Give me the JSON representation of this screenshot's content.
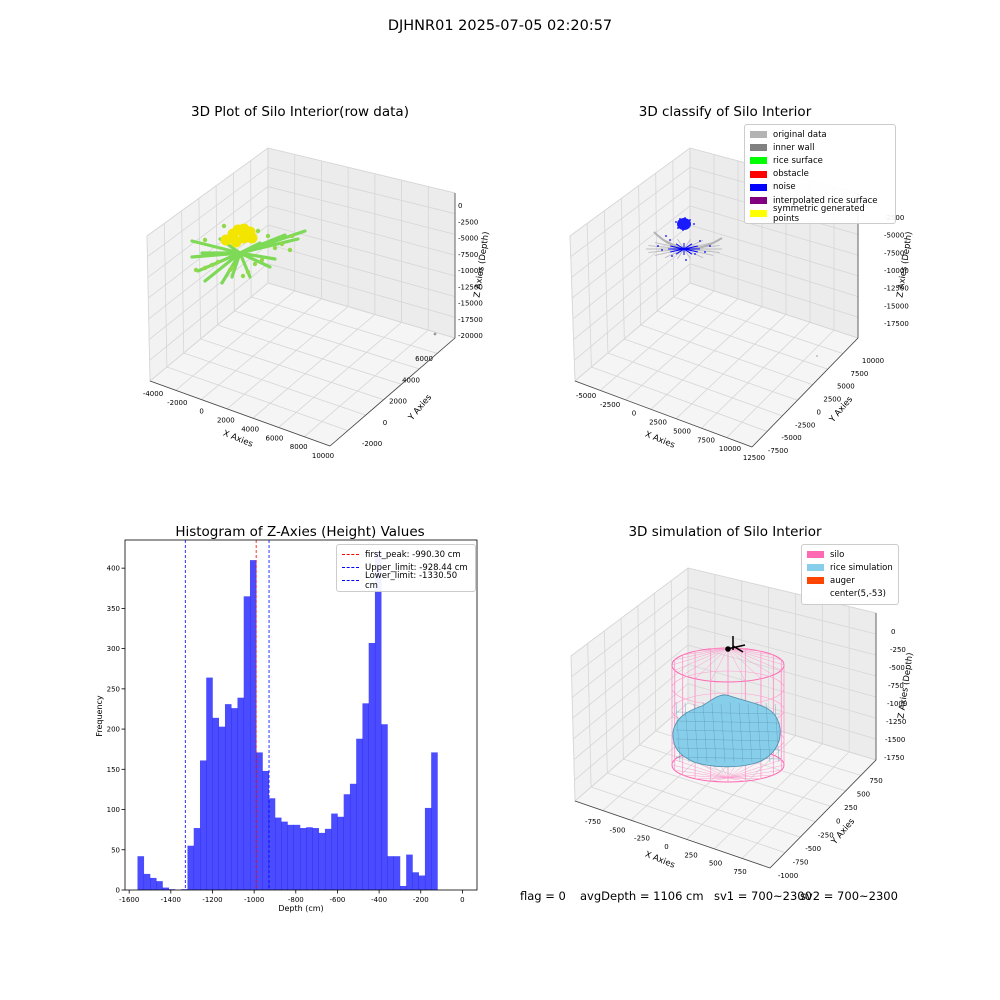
{
  "suptitle": "DJHNR01 2025-07-05 02:20:57",
  "panels": {
    "p1": {
      "title": "3D Plot of Silo Interior(row data)",
      "xlabel": "X Axies",
      "ylabel": "Y Axies",
      "zlabel": "Z Axies (Depth)",
      "xticks": [
        "-4000",
        "-2000",
        "0",
        "2000",
        "4000",
        "6000",
        "8000",
        "10000"
      ],
      "yticks": [
        "-2000",
        "0",
        "2000",
        "4000",
        "6000"
      ],
      "zticks": [
        "0",
        "-2500",
        "-5000",
        "-7500",
        "-10000",
        "-12500",
        "-15000",
        "-17500",
        "-20000"
      ]
    },
    "p2": {
      "title": "3D classify of Silo Interior",
      "xlabel": "X Axies",
      "ylabel": "Y Axies",
      "zlabel": "Z Axies (Depth)",
      "xticks": [
        "-5000",
        "-2500",
        "0",
        "2500",
        "5000",
        "7500",
        "10000",
        "12500"
      ],
      "yticks": [
        "-7500",
        "-5000",
        "-2500",
        "0",
        "2500",
        "5000",
        "7500",
        "10000"
      ],
      "zticks": [
        "-2500",
        "-5000",
        "-7500",
        "-10000",
        "-12500",
        "-15000",
        "-17500"
      ],
      "legend": [
        {
          "label": "original data",
          "color": "#b3b3b3"
        },
        {
          "label": "inner wall",
          "color": "#808080"
        },
        {
          "label": "rice surface",
          "color": "#00ff00"
        },
        {
          "label": "obstacle",
          "color": "#ff0000"
        },
        {
          "label": "noise",
          "color": "#0000ff"
        },
        {
          "label": "interpolated rice surface",
          "color": "#800080"
        },
        {
          "label": "symmetric generated points",
          "color": "#ffff00"
        }
      ]
    },
    "p4": {
      "title": "3D simulation of Silo Interior",
      "xlabel": "X Axies",
      "ylabel": "Y Axies",
      "zlabel": "Z Axies (Depth)",
      "xticks": [
        "-750",
        "-500",
        "-250",
        "0",
        "250",
        "500",
        "750"
      ],
      "yticks": [
        "-1000",
        "-750",
        "-500",
        "-250",
        "0",
        "250",
        "500",
        "750"
      ],
      "zticks": [
        "0",
        "-250",
        "-500",
        "-750",
        "-1000",
        "-1250",
        "-1500",
        "-1750"
      ],
      "legend": [
        {
          "label": "silo",
          "color": "#ff69b4"
        },
        {
          "label": "rice simulation",
          "color": "#87ceeb"
        },
        {
          "label": "auger",
          "color": "#ff4500"
        },
        {
          "label": "center(5,-53)",
          "color": "#ffffff"
        }
      ]
    }
  },
  "chart_data": [
    {
      "type": "bar",
      "title": "Histogram of Z-Axies (Height) Values",
      "xlabel": "Depth (cm)",
      "ylabel": "Frequency",
      "bar_color": "#0000ff",
      "xlim": [
        -1620,
        70
      ],
      "ylim": [
        0,
        435
      ],
      "xticks": [
        -1600,
        -1400,
        -1200,
        -1000,
        -800,
        -600,
        -400,
        -200,
        0
      ],
      "yticks": [
        0,
        50,
        100,
        150,
        200,
        250,
        300,
        350,
        400
      ],
      "bins": [
        {
          "x0": -1560,
          "x1": -1530,
          "count": 42
        },
        {
          "x0": -1530,
          "x1": -1500,
          "count": 20
        },
        {
          "x0": -1500,
          "x1": -1470,
          "count": 15
        },
        {
          "x0": -1470,
          "x1": -1440,
          "count": 11
        },
        {
          "x0": -1440,
          "x1": -1410,
          "count": 3
        },
        {
          "x0": -1410,
          "x1": -1380,
          "count": 1
        },
        {
          "x0": -1380,
          "x1": -1350,
          "count": 0
        },
        {
          "x0": -1350,
          "x1": -1320,
          "count": 1
        },
        {
          "x0": -1320,
          "x1": -1290,
          "count": 55
        },
        {
          "x0": -1290,
          "x1": -1260,
          "count": 77
        },
        {
          "x0": -1260,
          "x1": -1230,
          "count": 161
        },
        {
          "x0": -1230,
          "x1": -1200,
          "count": 264
        },
        {
          "x0": -1200,
          "x1": -1170,
          "count": 214
        },
        {
          "x0": -1170,
          "x1": -1140,
          "count": 203
        },
        {
          "x0": -1140,
          "x1": -1110,
          "count": 231
        },
        {
          "x0": -1110,
          "x1": -1080,
          "count": 226
        },
        {
          "x0": -1080,
          "x1": -1050,
          "count": 239
        },
        {
          "x0": -1050,
          "x1": -1020,
          "count": 365
        },
        {
          "x0": -1020,
          "x1": -990,
          "count": 410
        },
        {
          "x0": -990,
          "x1": -960,
          "count": 171
        },
        {
          "x0": -960,
          "x1": -930,
          "count": 148
        },
        {
          "x0": -930,
          "x1": -900,
          "count": 114
        },
        {
          "x0": -900,
          "x1": -870,
          "count": 90
        },
        {
          "x0": -870,
          "x1": -840,
          "count": 85
        },
        {
          "x0": -840,
          "x1": -810,
          "count": 81
        },
        {
          "x0": -810,
          "x1": -780,
          "count": 81
        },
        {
          "x0": -780,
          "x1": -750,
          "count": 77
        },
        {
          "x0": -750,
          "x1": -720,
          "count": 78
        },
        {
          "x0": -720,
          "x1": -690,
          "count": 77
        },
        {
          "x0": -690,
          "x1": -660,
          "count": 71
        },
        {
          "x0": -660,
          "x1": -630,
          "count": 76
        },
        {
          "x0": -630,
          "x1": -600,
          "count": 95
        },
        {
          "x0": -600,
          "x1": -570,
          "count": 91
        },
        {
          "x0": -570,
          "x1": -540,
          "count": 119
        },
        {
          "x0": -540,
          "x1": -510,
          "count": 132
        },
        {
          "x0": -510,
          "x1": -480,
          "count": 188
        },
        {
          "x0": -480,
          "x1": -450,
          "count": 232
        },
        {
          "x0": -450,
          "x1": -420,
          "count": 307
        },
        {
          "x0": -420,
          "x1": -390,
          "count": 420
        },
        {
          "x0": -390,
          "x1": -360,
          "count": 206
        },
        {
          "x0": -360,
          "x1": -330,
          "count": 42
        },
        {
          "x0": -330,
          "x1": -300,
          "count": 42
        },
        {
          "x0": -300,
          "x1": -270,
          "count": 5
        },
        {
          "x0": -270,
          "x1": -240,
          "count": 44
        },
        {
          "x0": -240,
          "x1": -210,
          "count": 22
        },
        {
          "x0": -210,
          "x1": -180,
          "count": 18
        },
        {
          "x0": -180,
          "x1": -150,
          "count": 102
        },
        {
          "x0": -150,
          "x1": -120,
          "count": 171
        }
      ],
      "vlines": [
        {
          "label": "first_peak: -990.30 cm",
          "x": -990.3,
          "color": "#ff0000"
        },
        {
          "label": "Upper_limit: -928.44 cm",
          "x": -928.44,
          "color": "#0000ff"
        },
        {
          "label": "Lower_limit: -1330.50 cm",
          "x": -1330.5,
          "color": "#0000ff"
        }
      ],
      "legend_position": "top-right",
      "grid": false
    }
  ],
  "info": {
    "flag": "flag = 0",
    "avg": "avgDepth = 1106 cm",
    "sv1": "sv1 = 700~2300",
    "sv2": "sv2 = 700~2300"
  }
}
